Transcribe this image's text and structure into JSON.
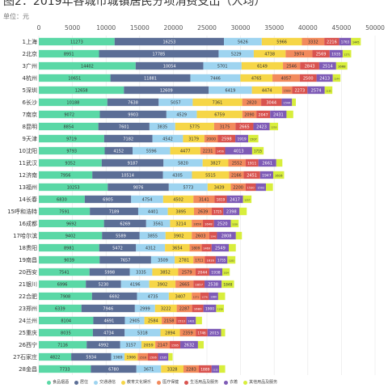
{
  "header": {
    "title": "图2：2019年各城市城镇居民分项消费支出（人均）",
    "unit": "单位：元"
  },
  "chart_data": {
    "type": "bar",
    "orientation": "horizontal",
    "stacked": true,
    "title": "图2：2019年各城市城镇居民分项消费支出（人均）",
    "xlabel": "",
    "ylabel": "",
    "xlim": [
      0,
      50000
    ],
    "xticks": [
      "0",
      "5000",
      "10000",
      "15000",
      "20000",
      "25000",
      "30000",
      "35000",
      "40000",
      "45000",
      "50000"
    ],
    "grid": true,
    "legend_position": "bottom",
    "categories": [
      "1上海",
      "2北京",
      "3广州",
      "4杭州",
      "5深圳",
      "6长沙",
      "7南京",
      "8昆明",
      "9天津",
      "10沈阳",
      "11武汉",
      "12济南",
      "13福州",
      "14长春",
      "15呼和浩特",
      "16成都",
      "17哈尔滨",
      "18贵阳",
      "19南昌",
      "20西安",
      "21银川",
      "22合肥",
      "23郑州",
      "24兰州",
      "25重庆",
      "26西宁",
      "27石家庄",
      "28金昌"
    ],
    "series": [
      {
        "name": "食品烟酒",
        "color": "#5ad8a6",
        "values": [
          11273,
          8951,
          14402,
          10651,
          12658,
          10188,
          9072,
          8854,
          9719,
          9793,
          9352,
          7956,
          10253,
          6830,
          7591,
          9692,
          9402,
          8981,
          9039,
          7541,
          6996,
          7908,
          6339,
          8104,
          8035,
          7116,
          4822,
          7733
        ]
      },
      {
        "name": "居住",
        "color": "#5b6e96",
        "values": [
          16253,
          17785,
          10054,
          11881,
          12609,
          7638,
          9903,
          7601,
          7182,
          4152,
          9187,
          10514,
          9076,
          6905,
          7189,
          6269,
          5589,
          5472,
          7657,
          5998,
          5230,
          6692,
          7946,
          4691,
          4734,
          4992,
          5934,
          6780
        ]
      },
      {
        "name": "交通通信",
        "color": "#9ed4f0",
        "values": [
          5626,
          5229,
          5701,
          7446,
          6419,
          5057,
          4529,
          3835,
          4542,
          5596,
          5820,
          4305,
          5773,
          4754,
          4401,
          3561,
          3855,
          4312,
          3509,
          3335,
          4196,
          4735,
          2999,
          2905,
          5318,
          3157,
          1989,
          3671
        ]
      },
      {
        "name": "教育文化娱乐",
        "color": "#f6d647",
        "values": [
          5966,
          4738,
          6149,
          4765,
          4474,
          7361,
          6759,
          5775,
          3179,
          4477,
          3827,
          5515,
          3439,
          4502,
          3895,
          3214,
          3902,
          3654,
          2781,
          3852,
          3902,
          3407,
          3222,
          2584,
          2894,
          2059,
          1966,
          3328
        ]
      },
      {
        "name": "医疗保健",
        "color": "#f28a5c",
        "values": [
          3332,
          3974,
          2546,
          4057,
          1509,
          2820,
          2090,
          3175,
          2000,
          2231,
          2552,
          2166,
          2200,
          3141,
          2639,
          1658,
          2603,
          1809,
          1711,
          2579,
          2665,
          1271,
          2287,
          2158,
          2359,
          2147,
          1516,
          2283
        ]
      },
      {
        "name": "生活用品及服务",
        "color": "#d9534f",
        "values": [
          2216,
          2569,
          2843,
          2500,
          2273,
          3044,
          2047,
          2665,
          2598,
          1456,
          1911,
          2451,
          1530,
          1819,
          1725,
          1648,
          1146,
          1469,
          1616,
          2044,
          1657,
          1276,
          1680,
          1513,
          1746,
          1565,
          1506,
          1889
        ]
      },
      {
        "name": "衣着",
        "color": "#7e5bb6",
        "values": [
          1763,
          1935,
          2514,
          2413,
          2574,
          1544,
          2431,
          2423,
          1919,
          4013,
          2661,
          1947,
          1502,
          2417,
          2398,
          2520,
          2808,
          2549,
          1735,
          1938,
          2538,
          1380,
          1900,
          1401,
          2015,
          2632,
          1535,
          1132
        ]
      },
      {
        "name": "其他用品及服务",
        "color": "#d8ee3c",
        "values": [
          1445,
          1271,
          1668,
          1144,
          1135,
          569,
          1005,
          1253,
          1507,
          1715,
          906,
          1616,
          1039,
          1257,
          1080,
          1158,
          894,
          1049,
          1183,
          1104,
          1848,
          1031,
          1159,
          904,
          606,
          852,
          631,
          897
        ]
      }
    ]
  }
}
